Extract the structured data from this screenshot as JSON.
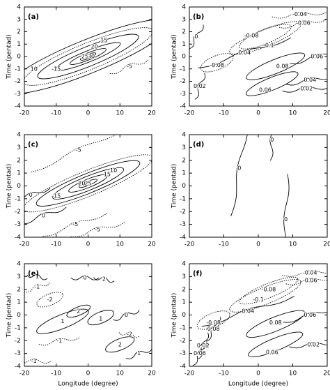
{
  "chart_data": [
    {
      "type": "contour",
      "label": "(a)",
      "xlim": [
        -20,
        20
      ],
      "ylim": [
        -4,
        4
      ],
      "xticks": [
        -20,
        -10,
        0,
        10,
        20
      ],
      "yticks": [
        -4,
        -3,
        -2,
        -1,
        0,
        1,
        2,
        3,
        4
      ],
      "ylabel": "Time (pentad)",
      "line_color": "#000000",
      "levels": [
        20,
        15,
        25,
        30,
        10,
        -15,
        -5
      ]
    },
    {
      "type": "contour",
      "label": "(b)",
      "xlim": [
        -20,
        20
      ],
      "ylim": [
        -4,
        4
      ],
      "xticks": [
        -20,
        -10,
        0,
        10,
        20
      ],
      "yticks": [
        -4,
        -3,
        -2,
        -1,
        0,
        1,
        2,
        3,
        4
      ],
      "ylabel": "Time (pentad)",
      "line_color": "#000000",
      "levels": [
        -0.04,
        -0.06,
        0,
        -0.08,
        -0.1,
        0.04,
        -0.08,
        0.06,
        0.08,
        0.04,
        0.02,
        0.06,
        0.02
      ]
    },
    {
      "type": "contour",
      "label": "(c)",
      "xlim": [
        -20,
        20
      ],
      "ylim": [
        -4,
        4
      ],
      "xticks": [
        -20,
        -10,
        0,
        10,
        20
      ],
      "yticks": [
        -4,
        -3,
        -2,
        -1,
        0,
        1,
        2,
        3,
        4
      ],
      "ylabel": "Time (pentad)",
      "line_color": "#000000",
      "levels": [
        -5,
        10,
        15,
        25,
        20,
        -15,
        0,
        0,
        -5,
        -5
      ]
    },
    {
      "type": "contour",
      "label": "(d)",
      "xlim": [
        -20,
        20
      ],
      "ylim": [
        -4,
        4
      ],
      "xticks": [
        -20,
        -10,
        0,
        10,
        20
      ],
      "yticks": [
        -4,
        -3,
        -2,
        -1,
        0,
        1,
        2,
        3,
        4
      ],
      "ylabel": "Time (pentad)",
      "line_color": "#000000",
      "levels": [
        0,
        0,
        0
      ]
    },
    {
      "type": "contour",
      "label": "(e)",
      "xlim": [
        -20,
        20
      ],
      "ylim": [
        -4,
        4
      ],
      "xticks": [
        -20,
        -10,
        0,
        10,
        20
      ],
      "yticks": [
        -4,
        -3,
        -2,
        -1,
        0,
        1,
        2,
        3,
        4
      ],
      "ylabel": "Time (pentad)",
      "xlabel": "Longitude (degree)",
      "line_color": "#000000",
      "levels": [
        1,
        0,
        2,
        -1,
        -2,
        1,
        2,
        -1,
        1,
        0,
        2,
        -2,
        1,
        -1
      ]
    },
    {
      "type": "contour",
      "label": "(f)",
      "xlim": [
        -20,
        20
      ],
      "ylim": [
        -4,
        4
      ],
      "xticks": [
        -20,
        -10,
        0,
        10,
        20
      ],
      "yticks": [
        -4,
        -3,
        -2,
        -1,
        0,
        1,
        2,
        3,
        4
      ],
      "ylabel": "Time (pentad)",
      "xlabel": "Longitude (degree)",
      "line_color": "#000000",
      "levels": [
        -0.04,
        -0.06,
        -0.08,
        -0.1,
        0.04,
        -0.08,
        0.08,
        0.06,
        0.08,
        0.06,
        0.02,
        0.02,
        0.06
      ]
    }
  ]
}
